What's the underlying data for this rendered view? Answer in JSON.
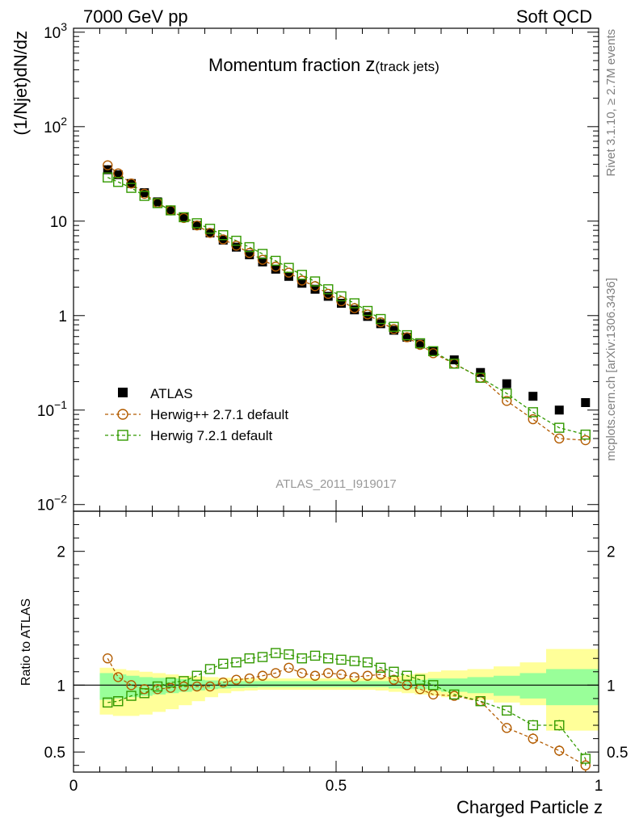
{
  "header": {
    "left": "7000 GeV pp",
    "right": "Soft QCD"
  },
  "plot_title": {
    "main": "Momentum fraction ",
    "z": "z",
    "sub": "(track jets)"
  },
  "analysis_id": "ATLAS_2011_I919017",
  "side_labels": {
    "rivet": "Rivet 3.1.10, ≥ 2.7M events",
    "mcplots": "mcplots.cern.ch [arXiv:1306.3436]"
  },
  "legend": [
    {
      "label": "ATLAS"
    },
    {
      "label": "Herwig++ 2.7.1 default"
    },
    {
      "label": "Herwig 7.2.1 default"
    }
  ],
  "colors": {
    "data": "#000000",
    "herwigpp": "#b35c00",
    "herwig7": "#339900",
    "band_inner": "#99ff99",
    "band_outer": "#ffff99",
    "analysis_id": "#999999",
    "side_text": "#808080"
  },
  "chart_data": [
    {
      "type": "scatter",
      "log_y": true,
      "ylabel": "(1/Njet)dN/dz",
      "xlim": [
        0,
        1
      ],
      "ylim": [
        0.0085,
        1100
      ],
      "yticks": [
        {
          "value": 0.01,
          "base": "10",
          "exp": "−2"
        },
        {
          "value": 0.1,
          "base": "10",
          "exp": "−1"
        },
        {
          "value": 1,
          "base": "1",
          "exp": ""
        },
        {
          "value": 10,
          "base": "10",
          "exp": ""
        },
        {
          "value": 100,
          "base": "10",
          "exp": "2"
        },
        {
          "value": 1000,
          "base": "10",
          "exp": "3"
        }
      ],
      "x": [
        0.065,
        0.085,
        0.11,
        0.135,
        0.16,
        0.185,
        0.21,
        0.235,
        0.26,
        0.285,
        0.31,
        0.335,
        0.36,
        0.385,
        0.41,
        0.435,
        0.46,
        0.485,
        0.51,
        0.535,
        0.56,
        0.585,
        0.61,
        0.635,
        0.66,
        0.685,
        0.725,
        0.775,
        0.825,
        0.875,
        0.925,
        0.975
      ],
      "series": [
        {
          "name": "ATLAS",
          "values": [
            35,
            31,
            25,
            20,
            16,
            13,
            11,
            9,
            7.5,
            6.3,
            5.3,
            4.4,
            3.7,
            3.1,
            2.6,
            2.2,
            1.9,
            1.6,
            1.35,
            1.15,
            0.98,
            0.82,
            0.7,
            0.59,
            0.5,
            0.42,
            0.34,
            0.25,
            0.19,
            0.14,
            0.1,
            0.12
          ]
        },
        {
          "name": "Herwig++ 2.7.1 default",
          "values": [
            39,
            32,
            25,
            19.5,
            15.6,
            13,
            10.8,
            9,
            7.5,
            6.4,
            5.5,
            4.6,
            3.9,
            3.3,
            2.85,
            2.35,
            2.05,
            1.7,
            1.42,
            1.2,
            1.03,
            0.85,
            0.72,
            0.59,
            0.49,
            0.4,
            0.31,
            0.22,
            0.125,
            0.08,
            0.05,
            0.048
          ]
        },
        {
          "name": "Herwig 7.2.1 default",
          "values": [
            29,
            26,
            22.5,
            18.5,
            15.5,
            13,
            11,
            9.5,
            8.3,
            7.1,
            6.2,
            5.3,
            4.5,
            3.8,
            3.2,
            2.7,
            2.3,
            1.9,
            1.6,
            1.35,
            1.12,
            0.92,
            0.76,
            0.62,
            0.51,
            0.42,
            0.31,
            0.22,
            0.15,
            0.095,
            0.065,
            0.055
          ]
        }
      ]
    },
    {
      "type": "scatter",
      "ylabel": "Ratio to ATLAS",
      "xlabel": "Charged Particle z",
      "xlim": [
        0,
        1
      ],
      "ylim": [
        0.35,
        2.3
      ],
      "yticks": [
        0.5,
        1,
        2
      ],
      "xticks": [
        0,
        0.5,
        1
      ],
      "bands": {
        "x_edges": [
          0.05,
          0.075,
          0.1,
          0.125,
          0.15,
          0.175,
          0.2,
          0.225,
          0.25,
          0.275,
          0.3,
          0.325,
          0.35,
          0.375,
          0.4,
          0.425,
          0.45,
          0.475,
          0.5,
          0.525,
          0.55,
          0.575,
          0.6,
          0.625,
          0.65,
          0.675,
          0.7,
          0.75,
          0.8,
          0.85,
          0.9,
          0.95,
          1.0
        ],
        "inner_low": [
          0.89,
          0.9,
          0.91,
          0.92,
          0.93,
          0.94,
          0.95,
          0.96,
          0.97,
          0.975,
          0.98,
          0.982,
          0.985,
          0.985,
          0.985,
          0.985,
          0.985,
          0.985,
          0.985,
          0.985,
          0.985,
          0.985,
          0.975,
          0.97,
          0.97,
          0.96,
          0.95,
          0.94,
          0.92,
          0.9,
          0.85,
          0.85
        ],
        "inner_high": [
          1.09,
          1.08,
          1.07,
          1.06,
          1.055,
          1.05,
          1.045,
          1.04,
          1.035,
          1.03,
          1.03,
          1.03,
          1.03,
          1.03,
          1.03,
          1.03,
          1.03,
          1.03,
          1.03,
          1.03,
          1.03,
          1.03,
          1.035,
          1.04,
          1.04,
          1.05,
          1.05,
          1.06,
          1.07,
          1.09,
          1.12,
          1.12
        ],
        "outer_low": [
          0.78,
          0.77,
          0.77,
          0.78,
          0.8,
          0.82,
          0.85,
          0.88,
          0.91,
          0.94,
          0.955,
          0.96,
          0.965,
          0.965,
          0.965,
          0.965,
          0.965,
          0.965,
          0.965,
          0.965,
          0.965,
          0.96,
          0.95,
          0.94,
          0.93,
          0.92,
          0.91,
          0.89,
          0.87,
          0.85,
          0.66,
          0.66
        ],
        "outer_high": [
          1.13,
          1.12,
          1.11,
          1.1,
          1.09,
          1.08,
          1.07,
          1.065,
          1.06,
          1.055,
          1.05,
          1.05,
          1.05,
          1.05,
          1.05,
          1.05,
          1.05,
          1.05,
          1.05,
          1.05,
          1.05,
          1.06,
          1.07,
          1.08,
          1.09,
          1.1,
          1.11,
          1.12,
          1.14,
          1.17,
          1.27,
          1.27
        ]
      },
      "x": [
        0.065,
        0.085,
        0.11,
        0.135,
        0.16,
        0.185,
        0.21,
        0.235,
        0.26,
        0.285,
        0.31,
        0.335,
        0.36,
        0.385,
        0.41,
        0.435,
        0.46,
        0.485,
        0.51,
        0.535,
        0.56,
        0.585,
        0.61,
        0.635,
        0.66,
        0.685,
        0.725,
        0.775,
        0.825,
        0.875,
        0.925,
        0.975
      ],
      "series": [
        {
          "name": "Herwig++ 2.7.1 default",
          "values": [
            1.2,
            1.06,
            1.0,
            0.97,
            0.97,
            0.98,
            0.99,
            0.99,
            0.99,
            1.02,
            1.04,
            1.05,
            1.07,
            1.09,
            1.13,
            1.09,
            1.07,
            1.09,
            1.08,
            1.06,
            1.07,
            1.08,
            1.04,
            1.0,
            0.97,
            0.93,
            0.92,
            0.88,
            0.68,
            0.6,
            0.51,
            0.4
          ],
          "errors": [
            0.01,
            0.01,
            0.01,
            0.01,
            0.01,
            0.01,
            0.01,
            0.01,
            0.01,
            0.01,
            0.01,
            0.01,
            0.015,
            0.02,
            0.02,
            0.03,
            0.03,
            0.02,
            0.02,
            0.02,
            0.02,
            0.02,
            0.02,
            0.02,
            0.02,
            0.03,
            0.03,
            0.03,
            0.03,
            0.04,
            0.04,
            0.05
          ]
        },
        {
          "name": "Herwig 7.2.1 default",
          "values": [
            0.87,
            0.88,
            0.92,
            0.94,
            0.99,
            1.02,
            1.03,
            1.07,
            1.12,
            1.16,
            1.17,
            1.2,
            1.21,
            1.24,
            1.23,
            1.2,
            1.22,
            1.2,
            1.19,
            1.18,
            1.17,
            1.13,
            1.1,
            1.07,
            1.04,
            1.0,
            0.93,
            0.88,
            0.81,
            0.7,
            0.7,
            0.45
          ],
          "errors": [
            0.01,
            0.01,
            0.01,
            0.01,
            0.01,
            0.01,
            0.01,
            0.01,
            0.01,
            0.01,
            0.01,
            0.01,
            0.015,
            0.02,
            0.02,
            0.02,
            0.02,
            0.02,
            0.02,
            0.02,
            0.02,
            0.02,
            0.02,
            0.02,
            0.02,
            0.02,
            0.02,
            0.03,
            0.03,
            0.04,
            0.04,
            0.05
          ]
        }
      ]
    }
  ]
}
